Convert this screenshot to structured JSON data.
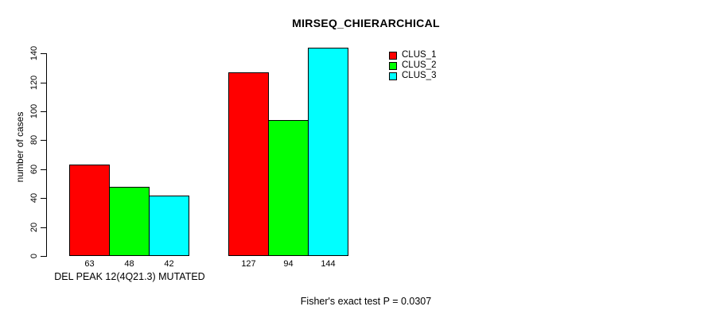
{
  "chart_data": {
    "type": "bar",
    "title": "MIRSEQ_CHIERARCHICAL",
    "ylabel": "number of cases",
    "xlabel": "DEL PEAK 12(4Q21.3) MUTATED",
    "groups": [
      "DEL PEAK 12(4Q21.3) MUTATED",
      ""
    ],
    "series": [
      {
        "name": "CLUS_1",
        "color": "#ff0000",
        "values": [
          63,
          127
        ]
      },
      {
        "name": "CLUS_2",
        "color": "#00ff00",
        "values": [
          48,
          94
        ]
      },
      {
        "name": "CLUS_3",
        "color": "#00ffff",
        "values": [
          42,
          144
        ]
      }
    ],
    "yticks": [
      0,
      20,
      40,
      60,
      80,
      100,
      120,
      140
    ],
    "ylim": [
      0,
      145
    ],
    "grid": false,
    "legend_position": "top-right",
    "bar_border_color": "#000000",
    "annotation": "Fisher's exact test P = 0.0307"
  }
}
